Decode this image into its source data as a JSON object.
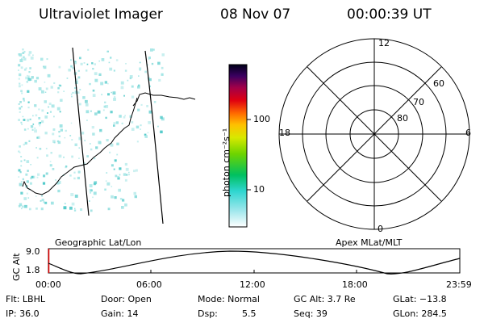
{
  "header": {
    "instrument": "Ultraviolet Imager",
    "date": "08 Nov 07",
    "time": "00:00:39 UT"
  },
  "colorbar": {
    "label": "photon cm⁻²s⁻¹",
    "ticks": [
      "100",
      "10"
    ]
  },
  "polar_plot": {
    "mlt_labels": [
      "12",
      "18",
      "6",
      "0"
    ],
    "lat_labels": [
      "60",
      "70",
      "80"
    ]
  },
  "altitude_plot": {
    "ylabel": "GC Alt",
    "yticks": [
      "9.0",
      "1.8"
    ],
    "left_title": "Geographic Lat/Lon",
    "right_title": "Apex MLat/MLT",
    "xticks": [
      "00:00",
      "06:00",
      "12:00",
      "18:00",
      "23:59"
    ]
  },
  "footer": {
    "filter": "Flt: LBHL",
    "ip": "IP: 36.0",
    "door": "Door: Open",
    "gain": "Gain: 14",
    "mode": "Mode: Normal",
    "dsp_label": "Dsp:",
    "dsp_value": "5.5",
    "gc_alt": "GC Alt: 3.7 Re",
    "seq": "Seq: 39",
    "glat": "GLat: −13.8",
    "glon": "GLon: 284.5"
  },
  "colors": {
    "speckle": "#9fe4e4",
    "speckle_dark": "#4fc9c9",
    "track_marker": "#e00000"
  }
}
